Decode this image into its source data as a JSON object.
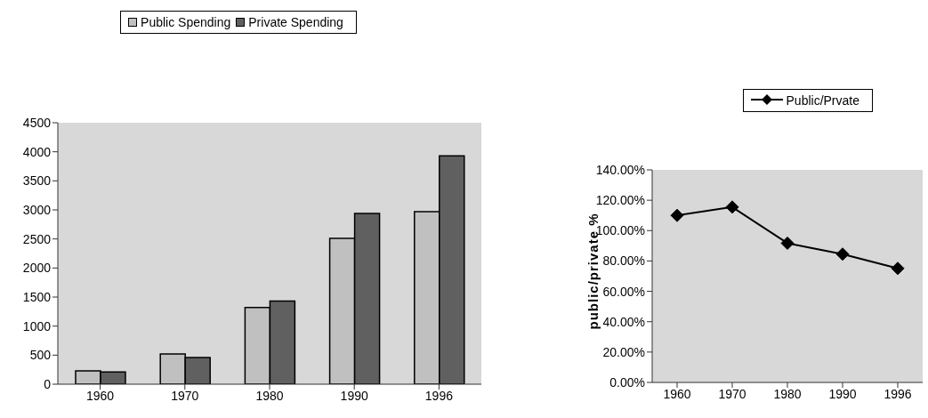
{
  "chart_data": [
    {
      "type": "bar",
      "categories": [
        "1960",
        "1970",
        "1980",
        "1990",
        "1996"
      ],
      "series": [
        {
          "name": "Public Spending",
          "color": "#c0c0c0",
          "values": [
            230,
            520,
            1320,
            2510,
            2970
          ]
        },
        {
          "name": "Private Spending",
          "color": "#606060",
          "values": [
            210,
            460,
            1430,
            2940,
            3930
          ]
        }
      ],
      "ylim": [
        0,
        4500
      ],
      "yticks": [
        0,
        500,
        1000,
        1500,
        2000,
        2500,
        3000,
        3500,
        4000,
        4500
      ],
      "legend": "top"
    },
    {
      "type": "line",
      "categories": [
        "1960",
        "1970",
        "1980",
        "1990",
        "1996"
      ],
      "ylabel": "public/private %",
      "series": [
        {
          "name": "Public/Prvate",
          "color": "#000000",
          "values": [
            110,
            115.5,
            91.7,
            84.5,
            75.1
          ]
        }
      ],
      "ylim": [
        0,
        140
      ],
      "yticks": [
        {
          "value": 0,
          "label": "0.00%"
        },
        {
          "value": 20,
          "label": "20.00%"
        },
        {
          "value": 40,
          "label": "40.00%"
        },
        {
          "value": 60,
          "label": "60.00%"
        },
        {
          "value": 80,
          "label": "80.00%"
        },
        {
          "value": 100,
          "label": "100.00%"
        },
        {
          "value": 120,
          "label": "120.00%"
        },
        {
          "value": 140,
          "label": "140.00%"
        }
      ],
      "marker": "diamond",
      "legend": "top right"
    }
  ]
}
